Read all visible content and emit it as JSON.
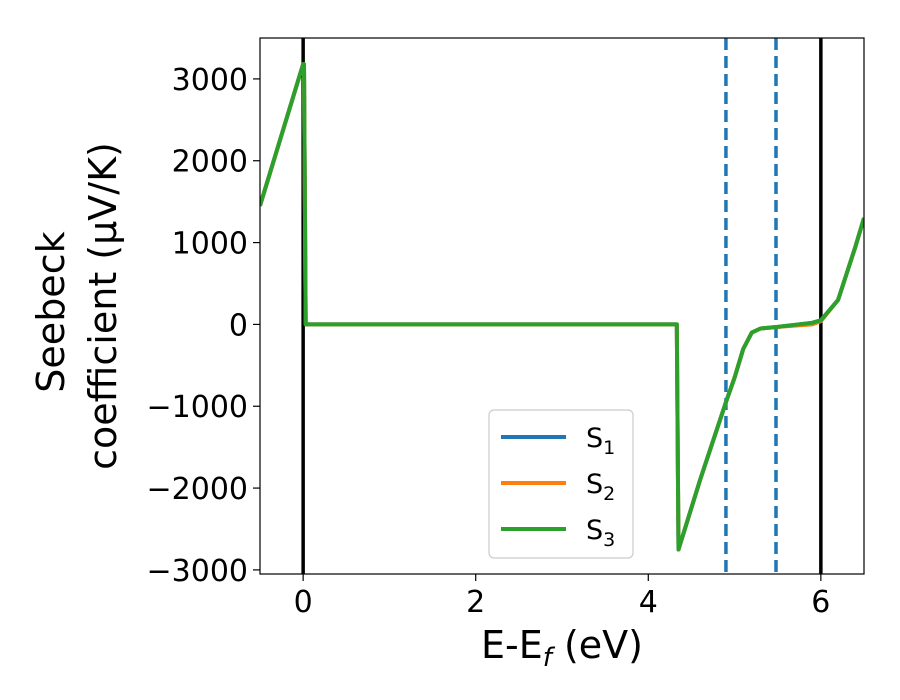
{
  "chart_data": {
    "type": "line",
    "xlabel": "E-E",
    "xlabel_sub": "f",
    "xlabel_unit": " (eV)",
    "ylabel_line1": "Seebeck",
    "ylabel_line2": "coefficient  (μV/K)",
    "xlim": [
      -0.5,
      6.5
    ],
    "ylim": [
      -3050,
      3500
    ],
    "xticks": [
      0,
      2,
      4,
      6
    ],
    "xtick_labels": [
      "0",
      "2",
      "4",
      "6"
    ],
    "yticks": [
      -3000,
      -2000,
      -1000,
      0,
      1000,
      2000,
      3000
    ],
    "ytick_labels": [
      "−3000",
      "−2000",
      "−1000",
      "0",
      "1000",
      "2000",
      "3000"
    ],
    "grid": false,
    "legend_placement": "lower-center",
    "vlines_solid": [
      0,
      6
    ],
    "vlines_dashed": [
      4.9,
      5.48
    ],
    "series": [
      {
        "name": "S",
        "sub": "1",
        "color": "#1f77b4",
        "x": [
          -0.5,
          0,
          0.01,
          0.03,
          4.33,
          4.35,
          4.6,
          4.9,
          5.0,
          5.1,
          5.2,
          5.3,
          5.5,
          5.9,
          6.0,
          6.2,
          6.4,
          6.5
        ],
        "y": [
          1450,
          3180,
          3180,
          0,
          0,
          -2750,
          -1900,
          -950,
          -650,
          -300,
          -100,
          -50,
          -30,
          20,
          50,
          300,
          950,
          1300
        ]
      },
      {
        "name": "S",
        "sub": "2",
        "color": "#ff7f0e",
        "x": [
          -0.5,
          0,
          0.01,
          0.03,
          4.33,
          4.35,
          4.6,
          4.9,
          5.0,
          5.1,
          5.2,
          5.3,
          5.5,
          5.9,
          6.0,
          6.2,
          6.4,
          6.5
        ],
        "y": [
          1450,
          3180,
          3180,
          0,
          0,
          -2750,
          -1900,
          -950,
          -650,
          -300,
          -100,
          -50,
          -30,
          0,
          40,
          300,
          950,
          1300
        ]
      },
      {
        "name": "S",
        "sub": "3",
        "color": "#2ca02c",
        "x": [
          -0.5,
          0,
          0.01,
          0.03,
          4.33,
          4.35,
          4.6,
          4.9,
          5.0,
          5.1,
          5.2,
          5.3,
          5.5,
          5.9,
          6.0,
          6.2,
          6.4,
          6.5
        ],
        "y": [
          1450,
          3180,
          3180,
          0,
          0,
          -2750,
          -1900,
          -950,
          -650,
          -300,
          -100,
          -50,
          -30,
          20,
          50,
          300,
          950,
          1300
        ]
      }
    ],
    "colors": {
      "vline_solid": "#000000",
      "vline_dashed": "#1f77b4"
    }
  }
}
